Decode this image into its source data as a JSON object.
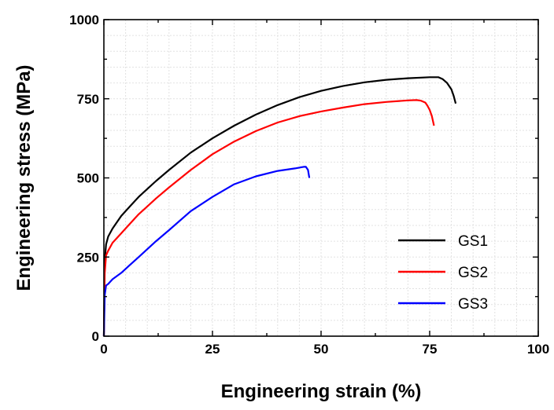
{
  "chart_data": {
    "type": "line",
    "xlabel": "Engineering strain (%)",
    "ylabel": "Engineering stress (MPa)",
    "xlim": [
      0,
      100
    ],
    "ylim": [
      0,
      1000
    ],
    "xticks": [
      "0",
      "25",
      "50",
      "75",
      "100"
    ],
    "yticks": [
      "0",
      "250",
      "500",
      "750",
      "1000"
    ],
    "grid": true,
    "legend_position": "bottom-right",
    "series": [
      {
        "name": "GS1",
        "color": "#000000",
        "x": [
          0,
          0.2,
          0.5,
          1,
          2,
          4,
          6,
          8,
          10,
          12,
          15,
          20,
          25,
          30,
          35,
          40,
          45,
          50,
          55,
          60,
          65,
          70,
          75,
          77,
          78,
          79,
          80,
          80.5,
          81
        ],
        "y": [
          0,
          240,
          290,
          315,
          340,
          380,
          410,
          440,
          465,
          490,
          525,
          580,
          625,
          665,
          700,
          730,
          755,
          775,
          790,
          802,
          810,
          815,
          818,
          818,
          812,
          800,
          780,
          760,
          735
        ]
      },
      {
        "name": "GS2",
        "color": "#ff0000",
        "x": [
          0,
          0.2,
          0.5,
          1,
          2,
          4,
          6,
          8,
          10,
          12,
          15,
          20,
          25,
          30,
          35,
          40,
          45,
          50,
          55,
          60,
          65,
          70,
          72,
          73,
          74,
          74.5,
          75,
          75.5,
          76
        ],
        "y": [
          0,
          200,
          255,
          270,
          295,
          325,
          355,
          385,
          410,
          435,
          470,
          525,
          575,
          615,
          648,
          675,
          695,
          710,
          722,
          733,
          740,
          745,
          746,
          744,
          738,
          728,
          715,
          695,
          665
        ]
      },
      {
        "name": "GS3",
        "color": "#0000ff",
        "x": [
          0,
          0.2,
          0.5,
          1,
          2,
          4,
          6,
          8,
          10,
          12,
          15,
          20,
          25,
          30,
          35,
          40,
          44,
          46,
          46.5,
          47,
          47.3
        ],
        "y": [
          0,
          130,
          160,
          165,
          180,
          200,
          225,
          250,
          275,
          300,
          335,
          395,
          440,
          480,
          505,
          522,
          530,
          535,
          535,
          525,
          500
        ]
      }
    ]
  }
}
